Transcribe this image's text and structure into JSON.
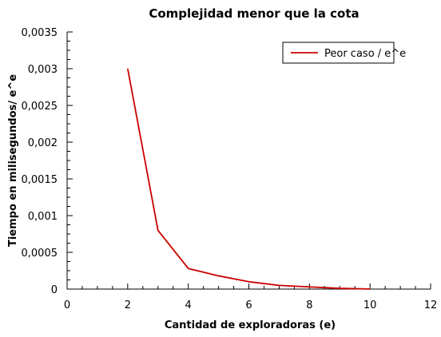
{
  "chart_data": {
    "type": "line",
    "title": "Complejidad menor que la cota",
    "xlabel": "Cantidad de exploradoras (e)",
    "ylabel": "Tiempo en milisegundos/ e^e",
    "xlim": [
      0,
      12
    ],
    "ylim": [
      0,
      0.0035
    ],
    "xticks": [
      0,
      2,
      4,
      6,
      8,
      10,
      12
    ],
    "xtick_labels": [
      "0",
      "2",
      "4",
      "6",
      "8",
      "10",
      "12"
    ],
    "yticks": [
      0,
      0.0005,
      0.001,
      0.0015,
      0.002,
      0.0025,
      0.003,
      0.0035
    ],
    "ytick_labels": [
      "0",
      "0,0005",
      "0,001",
      "0,0015",
      "0,002",
      "0,0025",
      "0,003",
      "0,0035"
    ],
    "grid": false,
    "legend": {
      "placement": "top-right"
    },
    "series": [
      {
        "name": "Peor caso / e^e",
        "color": "#cc0000",
        "x": [
          2,
          3,
          4,
          5,
          6,
          7,
          8,
          9,
          10
        ],
        "y": [
          0.003,
          0.0008,
          0.00028,
          0.00018,
          0.0001,
          5e-05,
          3e-05,
          1e-05,
          1e-06
        ]
      }
    ]
  }
}
